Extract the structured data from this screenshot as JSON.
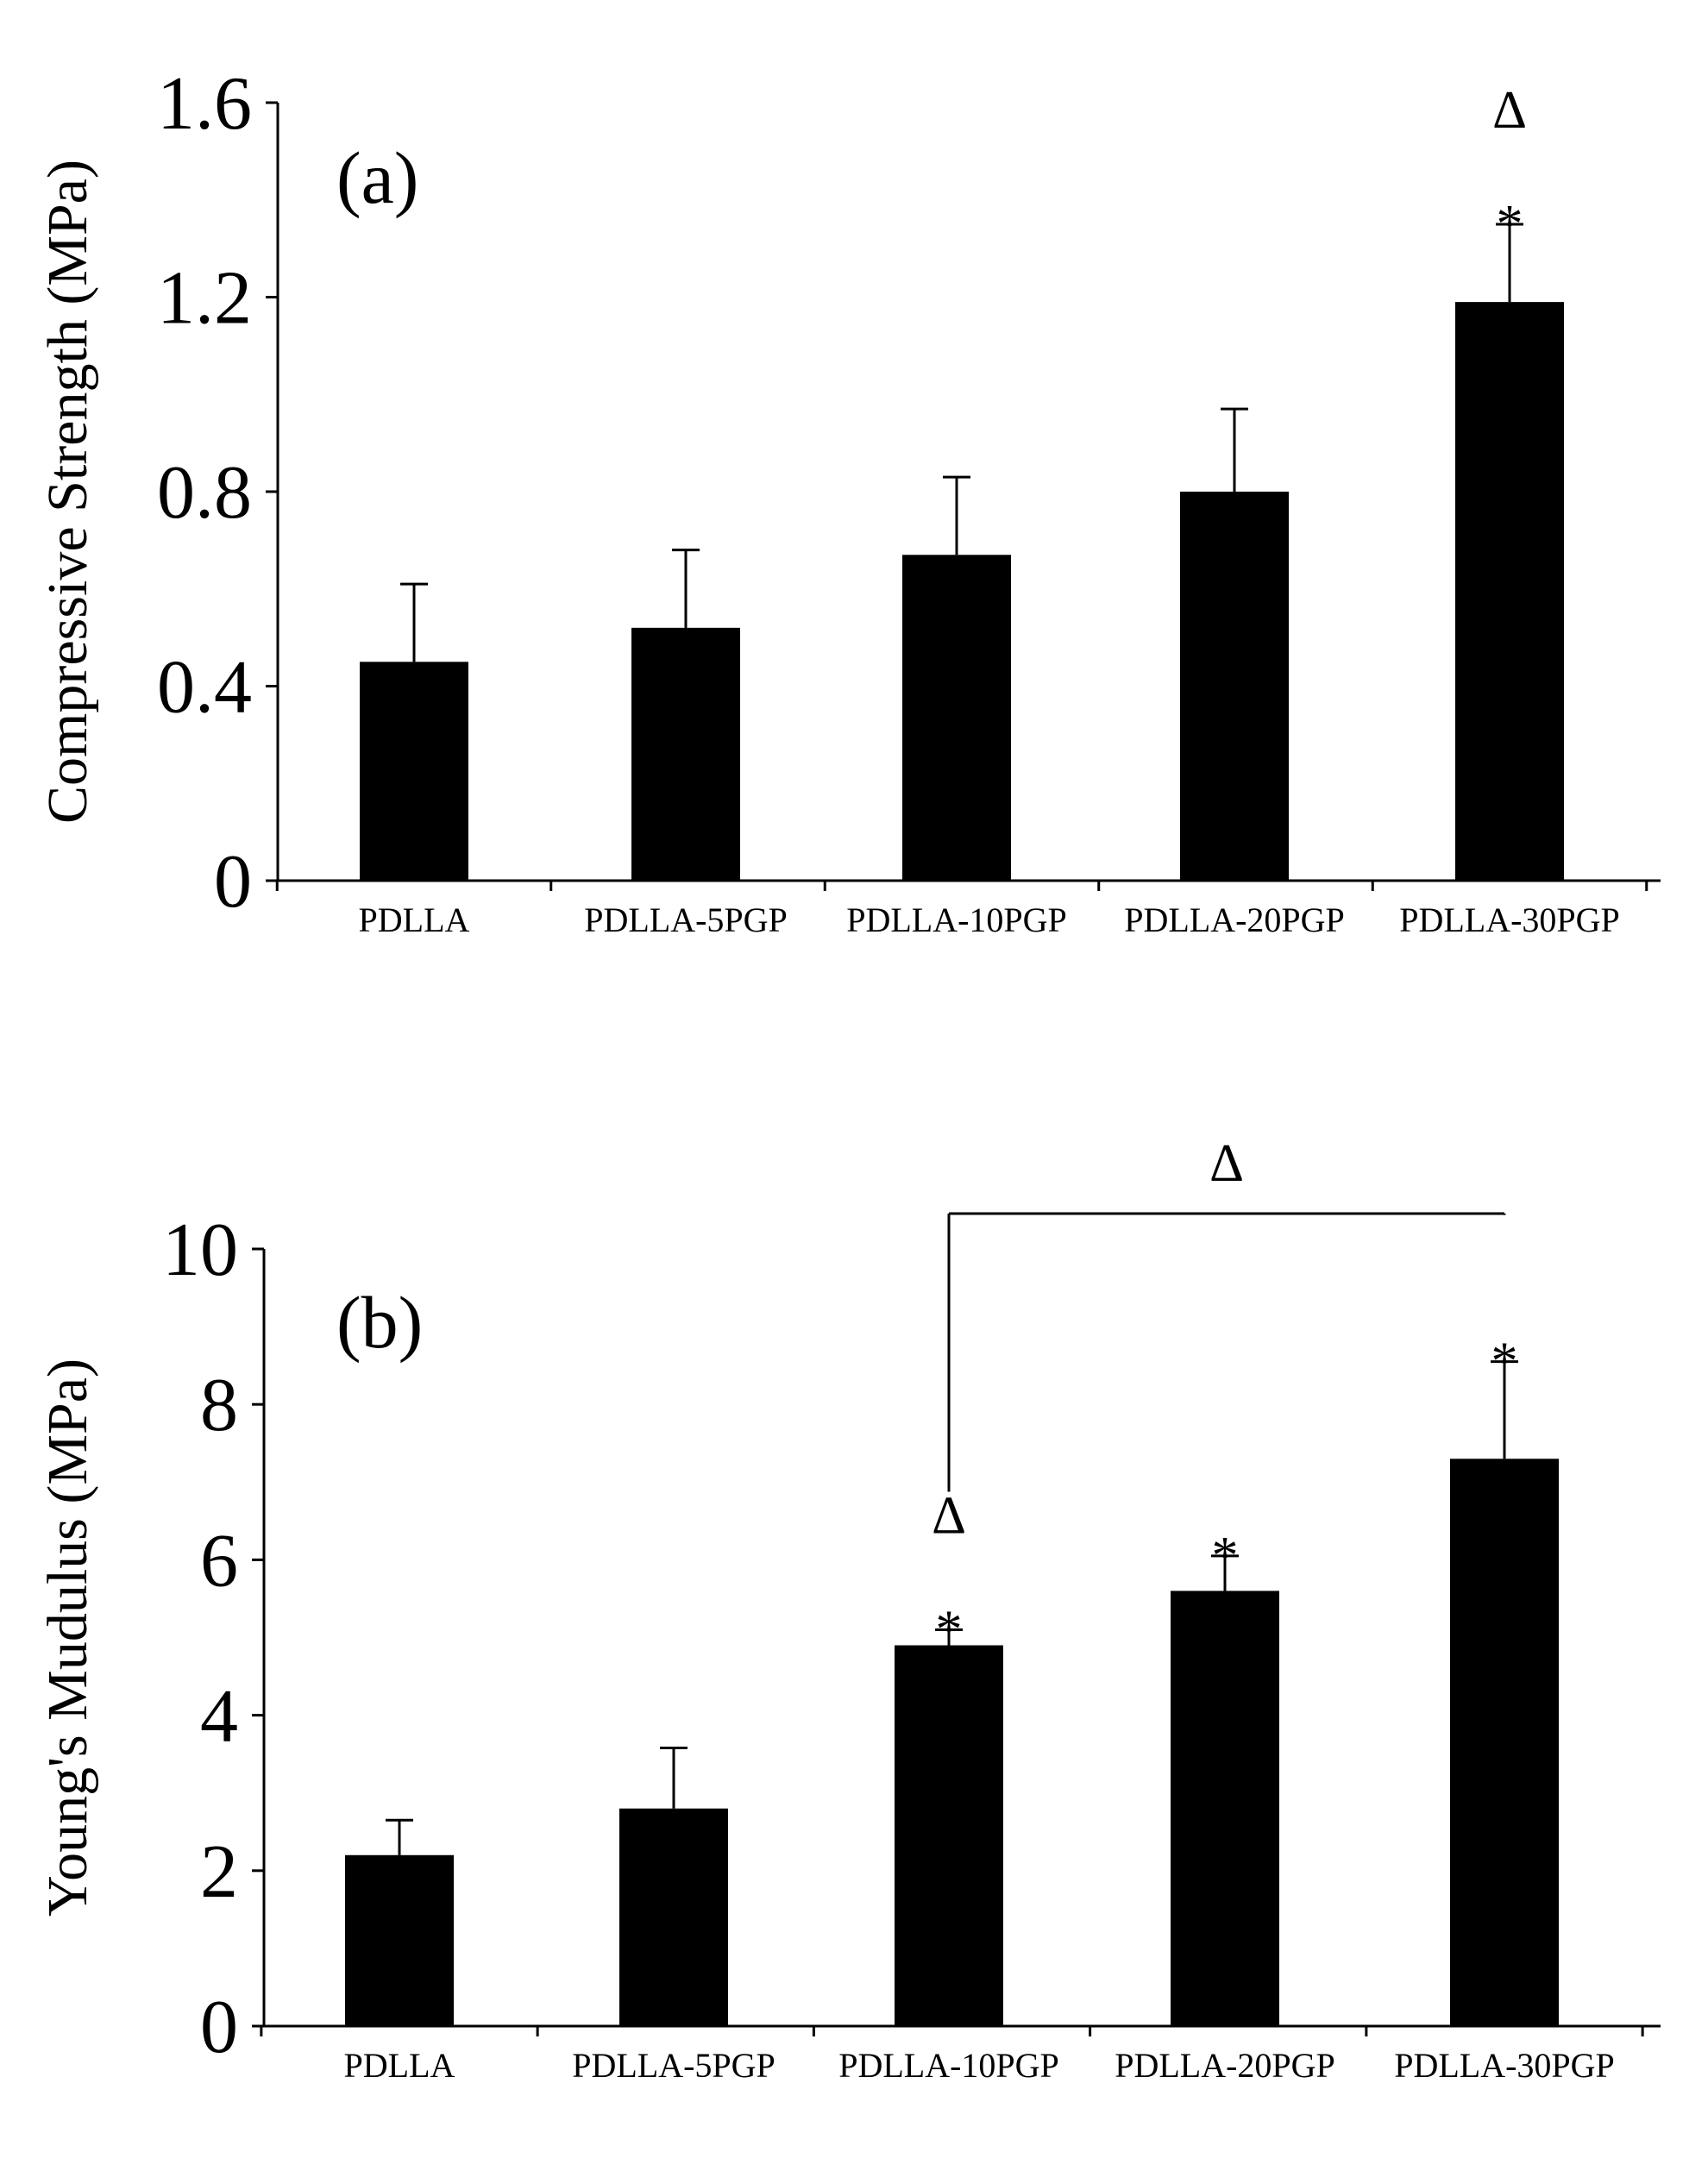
{
  "chart_data": [
    {
      "type": "bar",
      "panel_label": "(a)",
      "categories": [
        "PDLLA",
        "PDLLA-5PGP",
        "PDLLA-10PGP",
        "PDLLA-20PGP",
        "PDLLA-30PGP"
      ],
      "values": [
        0.45,
        0.52,
        0.67,
        0.8,
        1.19
      ],
      "errors": [
        0.16,
        0.16,
        0.16,
        0.17,
        0.16
      ],
      "ylabel": "Compressive Strength (MPa)",
      "xlabel": "",
      "ylim": [
        0,
        1.6
      ],
      "yticks": [
        0,
        0.4,
        0.8,
        1.2,
        1.6
      ],
      "ytick_labels": [
        "0",
        "0.4",
        "0.8",
        "1.2",
        "1.6"
      ],
      "grid": false,
      "color": "#000000",
      "annotations": [
        {
          "category": "PDLLA-30PGP",
          "marks": [
            "*",
            "Δ"
          ]
        }
      ]
    },
    {
      "type": "bar",
      "panel_label": "(b)",
      "categories": [
        "PDLLA",
        "PDLLA-5PGP",
        "PDLLA-10PGP",
        "PDLLA-20PGP",
        "PDLLA-30PGP"
      ],
      "values": [
        2.2,
        2.8,
        4.9,
        5.6,
        7.3
      ],
      "errors": [
        0.45,
        0.78,
        0.2,
        0.45,
        1.25
      ],
      "ylabel": "Young's Mudulus (MPa)",
      "xlabel": "",
      "ylim": [
        0,
        10
      ],
      "yticks": [
        0,
        2,
        4,
        6,
        8,
        10
      ],
      "ytick_labels": [
        "0",
        "2",
        "4",
        "6",
        "8",
        "10"
      ],
      "grid": false,
      "color": "#000000",
      "annotations": [
        {
          "category": "PDLLA-10PGP",
          "marks": [
            "*",
            "Δ"
          ]
        },
        {
          "category": "PDLLA-20PGP",
          "marks": [
            "*"
          ]
        },
        {
          "category": "PDLLA-30PGP",
          "marks": [
            "*"
          ]
        }
      ],
      "brackets": [
        {
          "from": "PDLLA-10PGP",
          "to": "PDLLA-30PGP",
          "label": "Δ"
        }
      ]
    }
  ]
}
